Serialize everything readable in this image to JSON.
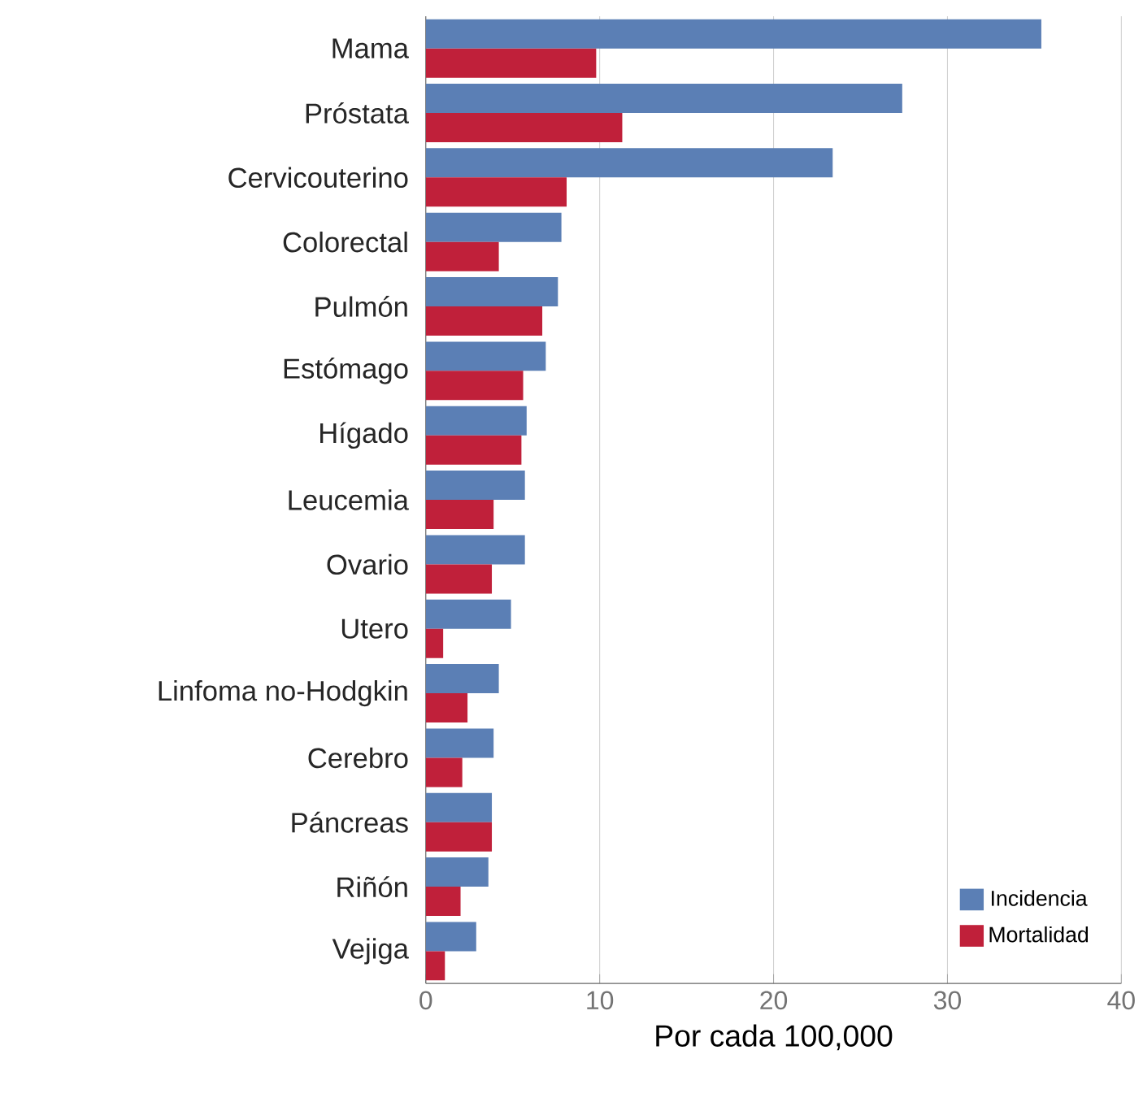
{
  "chart_data": {
    "type": "bar",
    "orientation": "horizontal",
    "xlabel": "Por cada 100,000",
    "categories": [
      "Mama",
      "Próstata",
      "Cervicouterino",
      "Colorectal",
      "Pulmón",
      "Estómago",
      "Hígado",
      "Leucemia",
      "Ovario",
      "Utero",
      "Linfoma no-Hodgkin",
      "Cerebro",
      "Páncreas",
      "Riñón",
      "Vejiga"
    ],
    "series": [
      {
        "name": "Incidencia",
        "color": "#5b7fb5",
        "values": [
          35.4,
          27.4,
          23.4,
          7.8,
          7.6,
          6.9,
          5.8,
          5.7,
          5.7,
          4.9,
          4.2,
          3.9,
          3.8,
          3.6,
          2.9
        ]
      },
      {
        "name": "Mortalidad",
        "color": "#c0203a",
        "values": [
          9.8,
          11.3,
          8.1,
          4.2,
          6.7,
          5.6,
          5.5,
          3.9,
          3.8,
          1.0,
          2.4,
          2.1,
          3.8,
          2.0,
          1.1
        ]
      }
    ],
    "xlim": [
      0,
      40
    ],
    "xticks": [
      0,
      10,
      20,
      30,
      40
    ],
    "grid": "x",
    "legend": "bottom right"
  }
}
